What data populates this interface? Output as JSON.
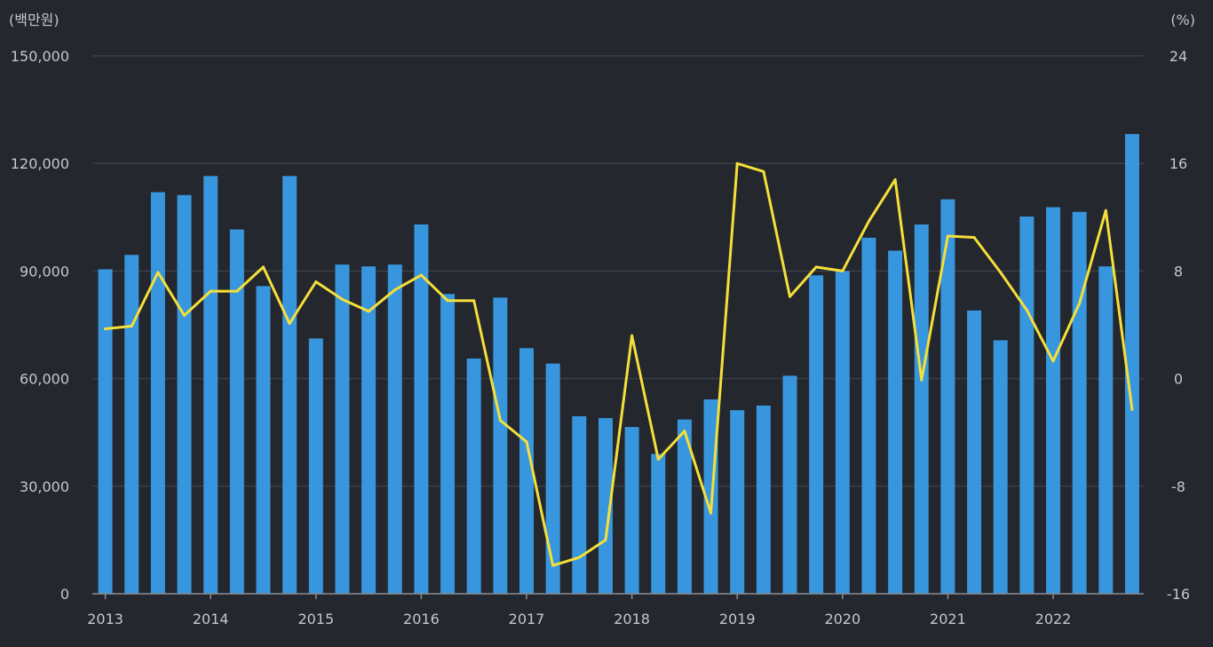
{
  "chart_data": {
    "type": "bar+line",
    "left_unit": "(백만원)",
    "right_unit": "(%)",
    "left_axis": {
      "ticks": [
        "0",
        "30,000",
        "60,000",
        "90,000",
        "120,000",
        "150,000"
      ],
      "ylim": [
        0,
        150000
      ]
    },
    "right_axis": {
      "ticks": [
        "-16",
        "-8",
        "0",
        "8",
        "16",
        "24"
      ],
      "ylim": [
        -16,
        24
      ]
    },
    "x_labels": [
      "2013",
      "2014",
      "2015",
      "2016",
      "2017",
      "2018",
      "2019",
      "2020",
      "2021",
      "2022"
    ],
    "bar_color": "#3796dd",
    "line_color": "#f5df3a",
    "series": [
      {
        "name": "bars",
        "axis": "left",
        "values": [
          90500,
          94500,
          112000,
          111200,
          116500,
          101600,
          85800,
          116500,
          71200,
          91800,
          91300,
          91800,
          103000,
          83600,
          65600,
          82600,
          68500,
          64200,
          49500,
          49000,
          46500,
          39000,
          48600,
          54200,
          51200,
          52500,
          60800,
          88800,
          90000,
          99300,
          95700,
          103000,
          110000,
          79000,
          70700,
          105200,
          107800,
          106500,
          91300,
          128200
        ]
      },
      {
        "name": "line",
        "axis": "right",
        "values": [
          3.7,
          3.9,
          7.9,
          4.7,
          6.5,
          6.5,
          8.3,
          4.1,
          7.2,
          5.9,
          5.0,
          6.6,
          7.7,
          5.8,
          5.8,
          -3.1,
          -4.7,
          -13.9,
          -13.3,
          -12.0,
          3.2,
          -6.0,
          -3.9,
          -10.0,
          16.0,
          15.4,
          6.1,
          8.3,
          8.0,
          11.7,
          14.8,
          -0.1,
          10.6,
          10.5,
          7.9,
          5.1,
          1.3,
          5.6,
          12.5,
          -2.3
        ]
      }
    ]
  }
}
